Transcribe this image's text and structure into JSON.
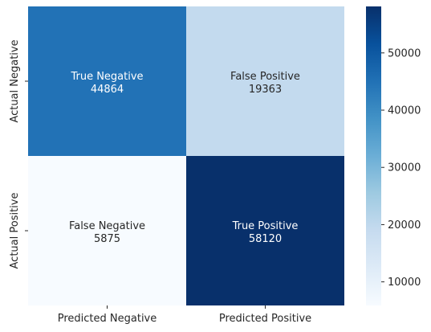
{
  "chart_data": {
    "type": "heatmap",
    "x_categories": [
      "Predicted Negative",
      "Predicted Positive"
    ],
    "y_categories": [
      "Actual Negative",
      "Actual Positive"
    ],
    "cells": [
      [
        {
          "label": "True Negative",
          "value": 44864
        },
        {
          "label": "False Positive",
          "value": 19363
        }
      ],
      [
        {
          "label": "False Negative",
          "value": 5875
        },
        {
          "label": "True Positive",
          "value": 58120
        }
      ]
    ],
    "colorbar": {
      "min": 5875,
      "max": 58120,
      "ticks": [
        10000,
        20000,
        30000,
        40000,
        50000
      ]
    },
    "colormap": [
      "#f7fbff",
      "#deebf7",
      "#c6dbef",
      "#9ecae1",
      "#6baed6",
      "#4292c6",
      "#2171b5",
      "#08519c",
      "#08306b"
    ],
    "title": "",
    "xlabel": "",
    "ylabel": ""
  }
}
